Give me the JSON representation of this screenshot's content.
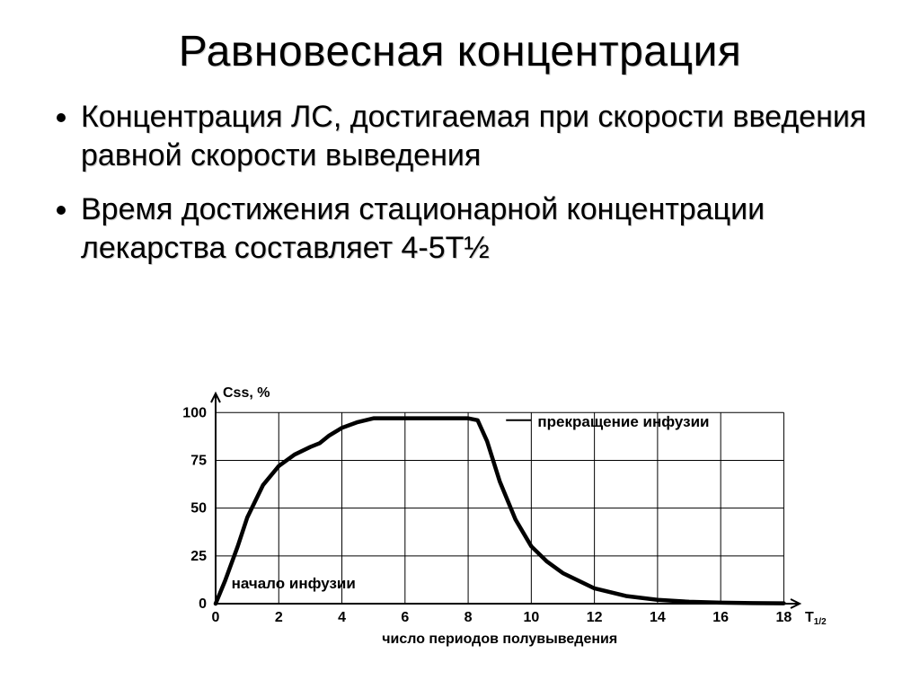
{
  "title": "Равновесная концентрация",
  "bullets": [
    "Концентрация ЛС, достигаемая при скорости введения равной скорости выведения",
    "Время достижения стационарной концентрации лекарства составляет 4-5Т½"
  ],
  "chart": {
    "type": "line",
    "y_axis_label": "Css, %",
    "x_axis_label": "число периодов полувыведения",
    "x_axis_unit_label": "T",
    "x_axis_unit_sub": "1/2",
    "annotations": {
      "start": "начало инфузии",
      "stop": "прекращение инфузии"
    },
    "x_ticks": [
      0,
      2,
      4,
      6,
      8,
      10,
      12,
      14,
      16,
      18
    ],
    "y_ticks": [
      0,
      25,
      50,
      75,
      100
    ],
    "ylim": [
      0,
      110
    ],
    "xlim": [
      0,
      18.5
    ],
    "curve": [
      [
        0,
        0
      ],
      [
        0.3,
        12
      ],
      [
        0.7,
        30
      ],
      [
        1,
        45
      ],
      [
        1.5,
        62
      ],
      [
        2,
        72
      ],
      [
        2.5,
        78
      ],
      [
        3,
        82
      ],
      [
        3.3,
        84
      ],
      [
        3.6,
        88
      ],
      [
        4,
        92
      ],
      [
        4.5,
        95
      ],
      [
        5,
        97
      ],
      [
        5.5,
        97
      ],
      [
        6,
        97
      ],
      [
        7,
        97
      ],
      [
        8,
        97
      ],
      [
        8.3,
        96
      ],
      [
        8.6,
        85
      ],
      [
        9,
        64
      ],
      [
        9.5,
        44
      ],
      [
        10,
        30
      ],
      [
        10.5,
        22
      ],
      [
        11,
        16
      ],
      [
        12,
        8
      ],
      [
        13,
        4
      ],
      [
        14,
        2
      ],
      [
        15,
        1
      ],
      [
        16,
        0.5
      ],
      [
        17,
        0.3
      ],
      [
        18,
        0.2
      ]
    ],
    "colors": {
      "line": "#000000",
      "grid": "#000000",
      "background": "#ffffff",
      "text": "#000000"
    },
    "line_width": 4.5,
    "grid_line_width": 1,
    "axis_line_width": 2,
    "font_size_ticks": 16,
    "font_size_labels": 16,
    "font_weight_labels": "bold",
    "font_size_annotations": 17,
    "font_weight_annotations": "bold"
  }
}
